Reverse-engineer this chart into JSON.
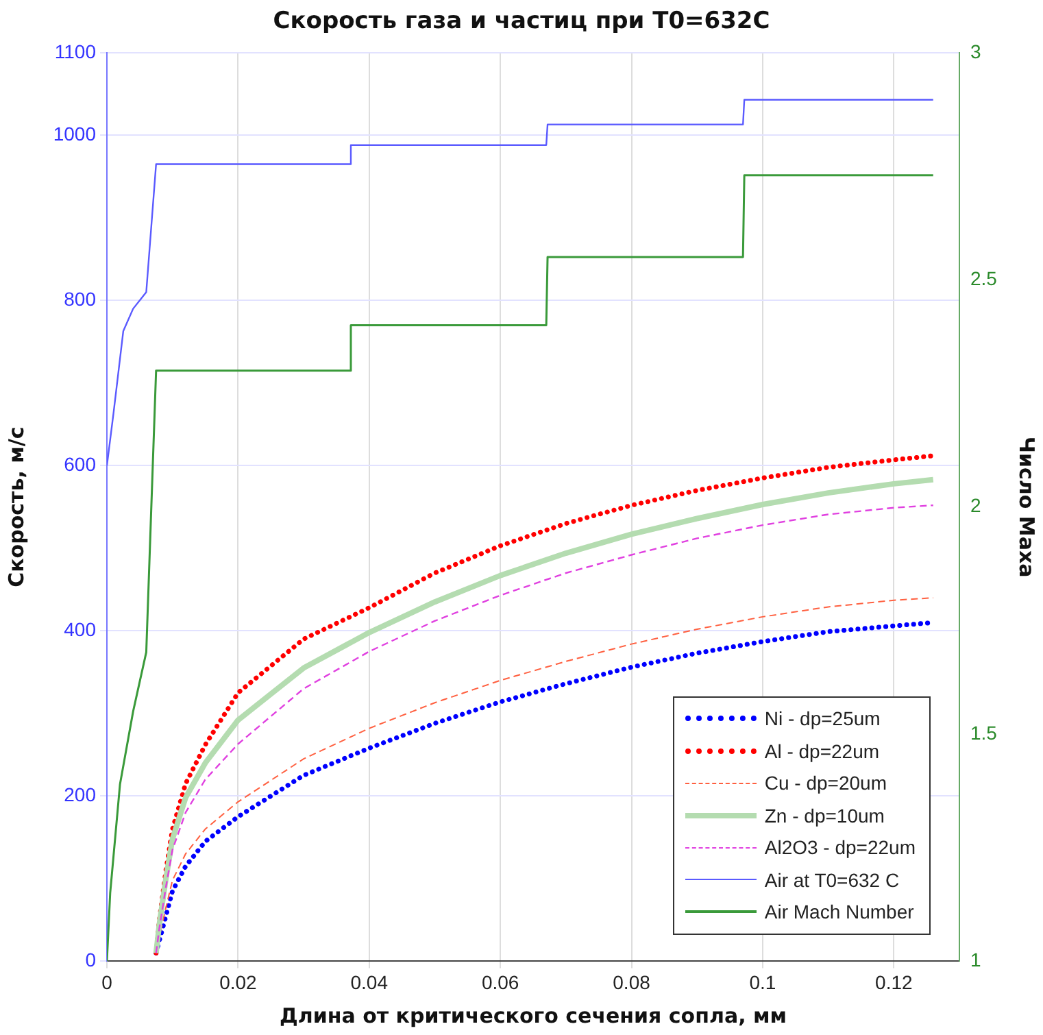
{
  "chart_data": {
    "type": "line",
    "title": "Скорость газа и частиц при T0=632C",
    "xlabel": "Длина от критического сечения сопла, мм",
    "ylabel": "Скорость, м/с",
    "y2label": "Число Маха",
    "xlim": [
      0,
      0.13
    ],
    "xticks": [
      0,
      0.02,
      0.04,
      0.06,
      0.08,
      0.1,
      0.12
    ],
    "ylim": [
      0,
      1100
    ],
    "yticks": [
      0,
      200,
      400,
      600,
      800,
      1000,
      1100
    ],
    "y2lim": [
      1,
      3
    ],
    "y2ticks": [
      1,
      1.5,
      2,
      2.5,
      3
    ],
    "grid": true,
    "legend": "bottom right",
    "marker": "none",
    "x": [
      0.0075,
      0.008,
      0.009,
      0.01,
      0.012,
      0.015,
      0.02,
      0.03,
      0.04,
      0.05,
      0.06,
      0.07,
      0.08,
      0.09,
      0.1,
      0.11,
      0.12,
      0.126
    ],
    "series": [
      {
        "name": "Ni - dp=25um",
        "color": "#0000ff",
        "line_style": "dotted",
        "values": [
          10,
          25,
          55,
          85,
          115,
          145,
          175,
          225,
          258,
          288,
          314,
          336,
          356,
          373,
          387,
          399,
          406,
          410
        ]
      },
      {
        "name": "Al - dp=22um",
        "color": "#ff0000",
        "line_style": "dotted",
        "values": [
          10,
          50,
          110,
          160,
          215,
          262,
          325,
          390,
          428,
          470,
          503,
          530,
          552,
          570,
          585,
          598,
          607,
          612
        ]
      },
      {
        "name": "Cu - dp=20um",
        "color": "#ff6040",
        "line_style": "dashed",
        "values": [
          10,
          30,
          65,
          98,
          130,
          160,
          193,
          245,
          282,
          313,
          340,
          363,
          384,
          402,
          417,
          429,
          437,
          440
        ]
      },
      {
        "name": "Zn - dp=10um",
        "color": "#b4dcb0",
        "line_style": "solid",
        "values": [
          10,
          45,
          100,
          148,
          198,
          240,
          292,
          355,
          398,
          435,
          467,
          494,
          517,
          536,
          553,
          567,
          578,
          583
        ]
      },
      {
        "name": "Al2O3 - dp=22um",
        "color": "#e040e0",
        "line_style": "dashed",
        "values": [
          10,
          40,
          90,
          135,
          180,
          220,
          263,
          330,
          375,
          412,
          443,
          470,
          492,
          512,
          528,
          541,
          549,
          552
        ]
      },
      {
        "name": "Air at T0=632 C",
        "color": "#5a5aff",
        "line_style": "solid",
        "x": [
          0,
          0.001,
          0.0025,
          0.004,
          0.006,
          0.0075,
          0.037,
          0.0372,
          0.067,
          0.0672,
          0.097,
          0.0972,
          0.126
        ],
        "values": [
          600,
          663,
          763,
          790,
          810,
          965,
          965,
          988,
          988,
          1013,
          1013,
          1043,
          1043
        ]
      },
      {
        "name": "Air Mach Number",
        "color": "#3a9a3a",
        "line_style": "solid",
        "axis": "y2",
        "x": [
          0,
          0.0005,
          0.002,
          0.004,
          0.006,
          0.0075,
          0.037,
          0.0372,
          0.067,
          0.0672,
          0.097,
          0.0972,
          0.126
        ],
        "values": [
          1,
          1.15,
          1.39,
          1.55,
          1.68,
          2.3,
          2.3,
          2.4,
          2.4,
          2.55,
          2.55,
          2.73,
          2.73
        ]
      }
    ]
  }
}
